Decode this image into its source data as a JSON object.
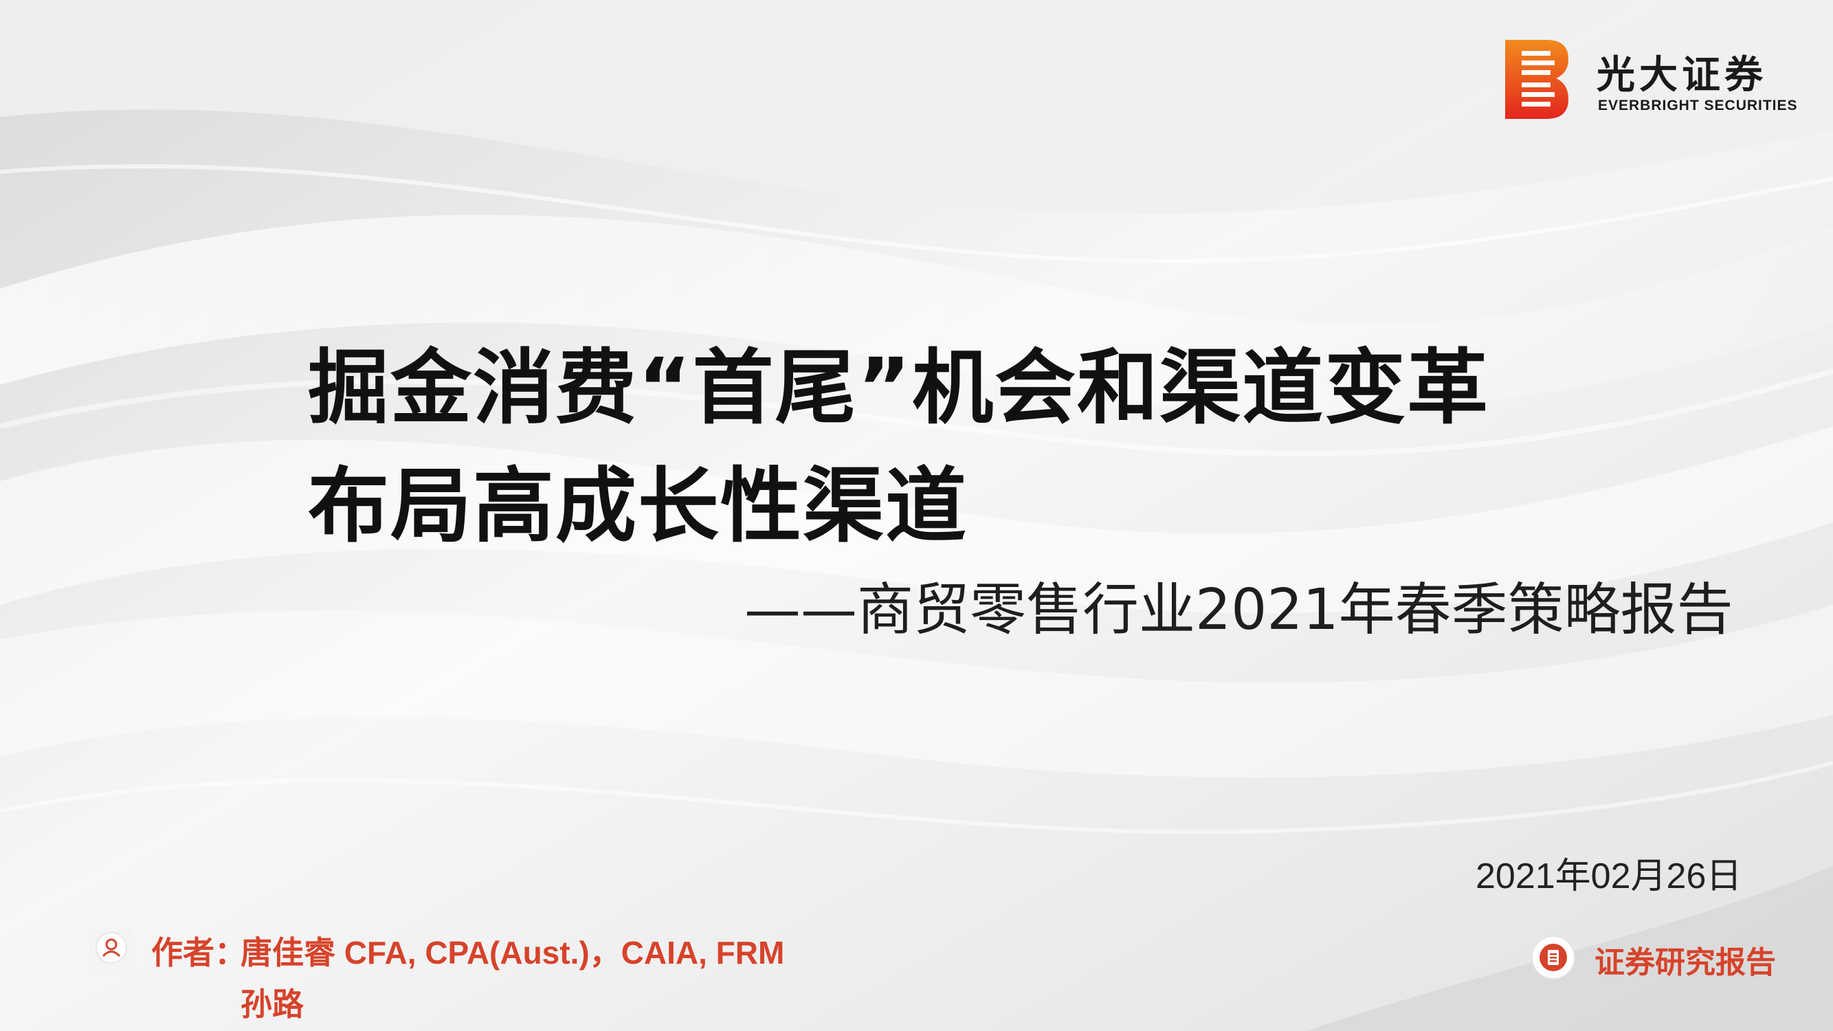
{
  "brand": {
    "name_cn": "光大证券",
    "name_en": "EVERBRIGHT SECURITIES",
    "logo_colors": [
      "#e8321e",
      "#f4a623"
    ]
  },
  "title": {
    "line1": "掘金消费“首尾”机会和渠道变革",
    "line2": "布局高成长性渠道",
    "subtitle": "——商贸零售行业2021年春季策略报告"
  },
  "date": "2021年02月26日",
  "authors": {
    "label": "作者：",
    "line1": "唐佳睿 CFA, CPA(Aust.)，CAIA, FRM",
    "line2": "孙路",
    "icon": "person-icon"
  },
  "report_type": {
    "label": "证券研究报告",
    "icon": "document-icon"
  },
  "colors": {
    "accent": "#d6432b",
    "background": "#eeeeee"
  }
}
